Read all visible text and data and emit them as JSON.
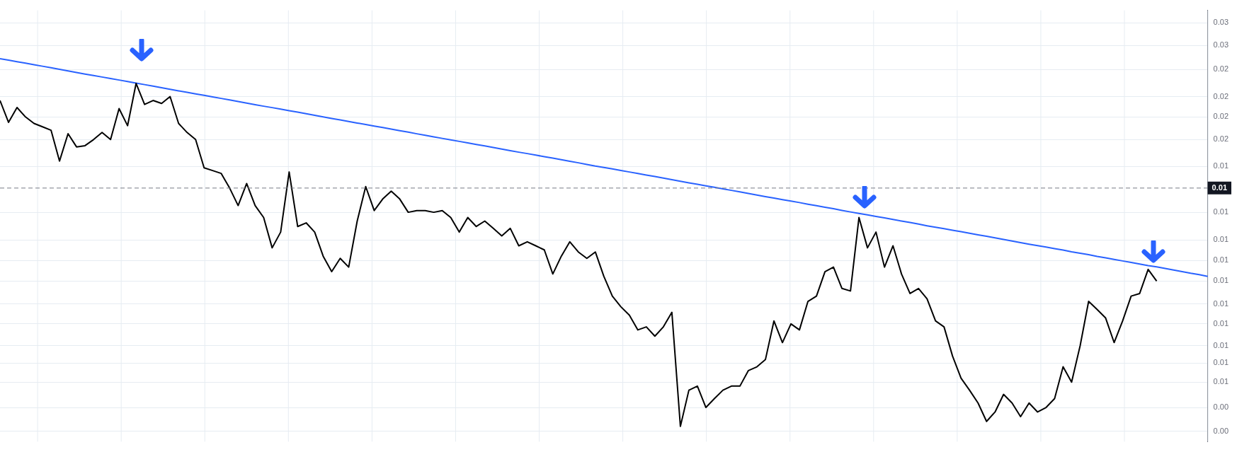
{
  "chart_data": {
    "type": "line",
    "categories": [
      null,
      null,
      null,
      null,
      null,
      null,
      null,
      null,
      null,
      null,
      null,
      null,
      null,
      null,
      null,
      null,
      null,
      null,
      null,
      null,
      null,
      null,
      null,
      null,
      null,
      null,
      null,
      null,
      null,
      null,
      null,
      null,
      null,
      null,
      null,
      null,
      null,
      null,
      null,
      null,
      null,
      null,
      null,
      null,
      null,
      null,
      null,
      null,
      null,
      null,
      null,
      null,
      null,
      null,
      null,
      null,
      null,
      null,
      null,
      null,
      null,
      null,
      null,
      null,
      null,
      null,
      null,
      null,
      null,
      null,
      null,
      null,
      null,
      null,
      null,
      null,
      null,
      null,
      null,
      null,
      null,
      null,
      null,
      null,
      null,
      null,
      null,
      null,
      null,
      null,
      null,
      null,
      null,
      null,
      null,
      null,
      null,
      null,
      null,
      null,
      null,
      null,
      null,
      null,
      null,
      null,
      null,
      null,
      null,
      null,
      null,
      null,
      null,
      null,
      null,
      null,
      null,
      null,
      null,
      null,
      null,
      null,
      null,
      null,
      null,
      null,
      null,
      null,
      null,
      null,
      null,
      null,
      null,
      null,
      null,
      null,
      null,
      null,
      null,
      null,
      null,
      null,
      null
    ],
    "series": [
      {
        "color": "#000000",
        "values": [
          0.0205,
          0.0184,
          0.0198,
          0.0189,
          0.0183,
          0.018,
          0.0177,
          0.0152,
          0.0174,
          0.0163,
          0.0164,
          0.0169,
          0.0175,
          0.0169,
          0.0197,
          0.0181,
          0.0223,
          0.0201,
          0.0205,
          0.0202,
          0.0209,
          0.0183,
          0.0175,
          0.0169,
          0.0147,
          0.0145,
          0.0143,
          0.0133,
          0.0122,
          0.0136,
          0.0122,
          0.0115,
          0.0099,
          0.0107,
          0.0144,
          0.011,
          0.0112,
          0.0107,
          0.0095,
          0.0088,
          0.0094,
          0.009,
          0.0113,
          0.0134,
          0.0119,
          0.0126,
          0.0131,
          0.0126,
          0.0118,
          0.0119,
          0.0119,
          0.0118,
          0.0119,
          0.0115,
          0.0107,
          0.0115,
          0.011,
          0.0113,
          0.0109,
          0.0105,
          0.0109,
          0.01,
          0.0102,
          0.01,
          0.0098,
          0.0087,
          0.0095,
          0.0102,
          0.0097,
          0.0094,
          0.0097,
          0.0086,
          0.0078,
          0.0074,
          0.0071,
          0.0066,
          0.0067,
          0.0064,
          0.0067,
          0.0072,
          0.0041,
          0.0049,
          0.005,
          0.0045,
          0.0047,
          0.0049,
          0.005,
          0.005,
          0.0054,
          0.0055,
          0.0057,
          0.0069,
          0.0062,
          0.0068,
          0.0066,
          0.0076,
          0.0078,
          0.0088,
          0.009,
          0.0081,
          0.008,
          0.0115,
          0.0099,
          0.0107,
          0.009,
          0.01,
          0.0087,
          0.0079,
          0.0081,
          0.0077,
          0.0069,
          0.0067,
          0.0058,
          0.0052,
          0.0049,
          0.0046,
          0.0042,
          0.0044,
          0.0048,
          0.0046,
          0.0043,
          0.0046,
          0.0044,
          0.0045,
          0.0047,
          0.0055,
          0.0051,
          0.0061,
          0.0076,
          0.0073,
          0.007,
          0.0062,
          0.0069,
          0.0078,
          0.0079,
          0.0089,
          0.0084,
          null,
          null,
          null,
          null,
          null,
          null
        ]
      },
      {
        "type": "line",
        "color": "#2962ff",
        "values": [
          0.0252,
          0.02502,
          0.02483,
          0.02465,
          0.02446,
          0.02428,
          0.0241,
          0.02391,
          0.02373,
          0.02354,
          0.02336,
          0.02319,
          0.02302,
          0.02285,
          0.02268,
          0.02251,
          0.02234,
          0.02217,
          0.022,
          0.02183,
          0.02166,
          0.0215,
          0.02134,
          0.02118,
          0.02103,
          0.02087,
          0.02071,
          0.02055,
          0.02039,
          0.02024,
          0.02008,
          0.01993,
          0.01979,
          0.01964,
          0.01949,
          0.01935,
          0.0192,
          0.01905,
          0.01891,
          0.01876,
          0.01862,
          0.01848,
          0.01834,
          0.01821,
          0.01807,
          0.01794,
          0.0178,
          0.01766,
          0.01753,
          0.01739,
          0.01726,
          0.01713,
          0.017,
          0.01688,
          0.01675,
          0.01663,
          0.0165,
          0.01638,
          0.01625,
          0.01613,
          0.016,
          0.01588,
          0.01577,
          0.01565,
          0.01553,
          0.01542,
          0.0153,
          0.01518,
          0.01507,
          0.01495,
          0.01483,
          0.01473,
          0.01462,
          0.01451,
          0.0144,
          0.01429,
          0.01418,
          0.01408,
          0.01397,
          0.01386,
          0.01375,
          0.01365,
          0.01355,
          0.01345,
          0.01335,
          0.01325,
          0.01315,
          0.01305,
          0.01295,
          0.01285,
          0.01275,
          0.01266,
          0.01256,
          0.01247,
          0.01238,
          0.01228,
          0.01219,
          0.0121,
          0.01201,
          0.01191,
          0.01182,
          0.01173,
          0.01165,
          0.01156,
          0.01148,
          0.01139,
          0.0113,
          0.01122,
          0.01113,
          0.01104,
          0.01096,
          0.01088,
          0.0108,
          0.01072,
          0.01064,
          0.01056,
          0.01048,
          0.0104,
          0.01032,
          0.01024,
          0.01016,
          0.01008,
          0.01001,
          0.00994,
          0.00986,
          0.00979,
          0.00971,
          0.00964,
          0.00957,
          0.00949,
          0.00942,
          0.00935,
          0.00928,
          0.00921,
          0.00914,
          0.00907,
          0.00901,
          0.00894,
          0.00887,
          0.0088,
          0.00873,
          0.00867,
          0.0086
        ]
      }
    ],
    "log": "y",
    "ylim": [
      0.0038,
      0.032
    ],
    "yticks": [
      {
        "value": 0.0301,
        "label": "0.03"
      },
      {
        "value": 0.0269,
        "label": "0.03"
      },
      {
        "value": 0.0239,
        "label": "0.02"
      },
      {
        "value": 0.0209,
        "label": "0.02"
      },
      {
        "value": 0.0189,
        "label": "0.02"
      },
      {
        "value": 0.0169,
        "label": "0.02"
      },
      {
        "value": 0.0148,
        "label": "0.01"
      },
      {
        "value": 0.0118,
        "label": "0.01"
      },
      {
        "value": 0.0103,
        "label": "0.01"
      },
      {
        "value": 0.0093,
        "label": "0.01"
      },
      {
        "value": 0.0084,
        "label": "0.01"
      },
      {
        "value": 0.0075,
        "label": "0.01"
      },
      {
        "value": 0.0068,
        "label": "0.01"
      },
      {
        "value": 0.0061,
        "label": "0.01"
      },
      {
        "value": 0.0056,
        "label": "0.01"
      },
      {
        "value": 0.0051,
        "label": "0.01"
      },
      {
        "value": 0.0045,
        "label": "0.00"
      },
      {
        "value": 0.004,
        "label": "0.00"
      }
    ],
    "ref_lines": [
      {
        "axis": "y",
        "value": 0.0133,
        "label": "0.01",
        "color": "#787b86",
        "line_style": "dashed"
      }
    ],
    "grid": true,
    "legend": false,
    "tick_labels": "y",
    "marker": "none",
    "line_style": "solid"
  }
}
